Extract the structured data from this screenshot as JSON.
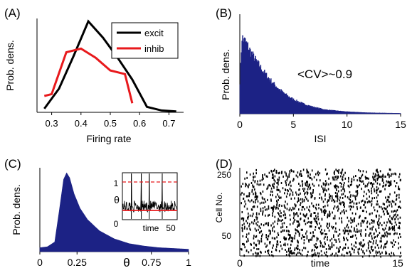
{
  "colors": {
    "excit": "#000000",
    "inhib": "#e8191c",
    "fill": "#1c2285",
    "threshold": "#e8191c"
  },
  "chart_data": [
    {
      "panel": "(A)",
      "type": "line",
      "xlabel": "Firing rate",
      "ylabel": "Prob. dens.",
      "xlim": [
        0.25,
        0.75
      ],
      "xticks": [
        "0.3",
        "0.4",
        "0.5",
        "0.6",
        "0.7"
      ],
      "legend": {
        "placement": "top-right",
        "entries": [
          "excit",
          "inhib"
        ]
      },
      "series": [
        {
          "name": "excit",
          "x": [
            0.275,
            0.325,
            0.375,
            0.425,
            0.475,
            0.525,
            0.575,
            0.625,
            0.675,
            0.725
          ],
          "y": [
            0.04,
            0.26,
            0.62,
            1.0,
            0.82,
            0.6,
            0.36,
            0.06,
            0.02,
            0.01
          ]
        },
        {
          "name": "inhib",
          "x": [
            0.275,
            0.3,
            0.35,
            0.4,
            0.45,
            0.5,
            0.55,
            0.575
          ],
          "y": [
            0.18,
            0.2,
            0.66,
            0.7,
            0.6,
            0.46,
            0.42,
            0.1
          ]
        }
      ]
    },
    {
      "panel": "(B)",
      "type": "area",
      "xlabel": "ISI",
      "ylabel": "Prob. dens.",
      "xlim": [
        0,
        15
      ],
      "xticks": [
        "0",
        "5",
        "10",
        "15"
      ],
      "annotation": "<CV>~0.9",
      "x": [
        0,
        0.2,
        0.5,
        0.8,
        1.0,
        1.5,
        2.0,
        2.5,
        3.0,
        3.5,
        4.0,
        4.5,
        5.0,
        6.0,
        7.0,
        8.0,
        10.0,
        12.0,
        15.0
      ],
      "y": [
        0.3,
        0.96,
        0.91,
        0.84,
        0.78,
        0.67,
        0.57,
        0.48,
        0.4,
        0.33,
        0.27,
        0.22,
        0.18,
        0.12,
        0.08,
        0.05,
        0.025,
        0.012,
        0.005
      ]
    },
    {
      "panel": "(C)",
      "type": "area",
      "xlabel": "θ",
      "ylabel": "Prob. dens.",
      "xlim": [
        0,
        1
      ],
      "xticks": [
        "0",
        "0.25",
        "0.75",
        "1"
      ],
      "x": [
        0,
        0.05,
        0.1,
        0.13,
        0.16,
        0.18,
        0.2,
        0.23,
        0.27,
        0.32,
        0.4,
        0.5,
        0.6,
        0.7,
        0.8,
        0.9,
        1.0
      ],
      "y": [
        0.05,
        0.06,
        0.12,
        0.5,
        0.9,
        0.98,
        0.92,
        0.72,
        0.54,
        0.4,
        0.26,
        0.16,
        0.1,
        0.07,
        0.05,
        0.04,
        0.03
      ],
      "inset": {
        "xlabel": "time",
        "ylabel": "θ",
        "xticks": [
          "0",
          "50"
        ],
        "yticks": [
          "0",
          "1"
        ],
        "threshold": 1,
        "mean": 0.2,
        "spike_times": [
          9,
          19,
          27,
          40
        ]
      }
    },
    {
      "panel": "(D)",
      "type": "scatter",
      "xlabel": "time",
      "ylabel": "Cell No.",
      "xlim": [
        0,
        15
      ],
      "ylim": [
        0,
        260
      ],
      "xticks": [
        "0",
        "15"
      ],
      "yticks": [
        "50",
        "250"
      ]
    }
  ]
}
